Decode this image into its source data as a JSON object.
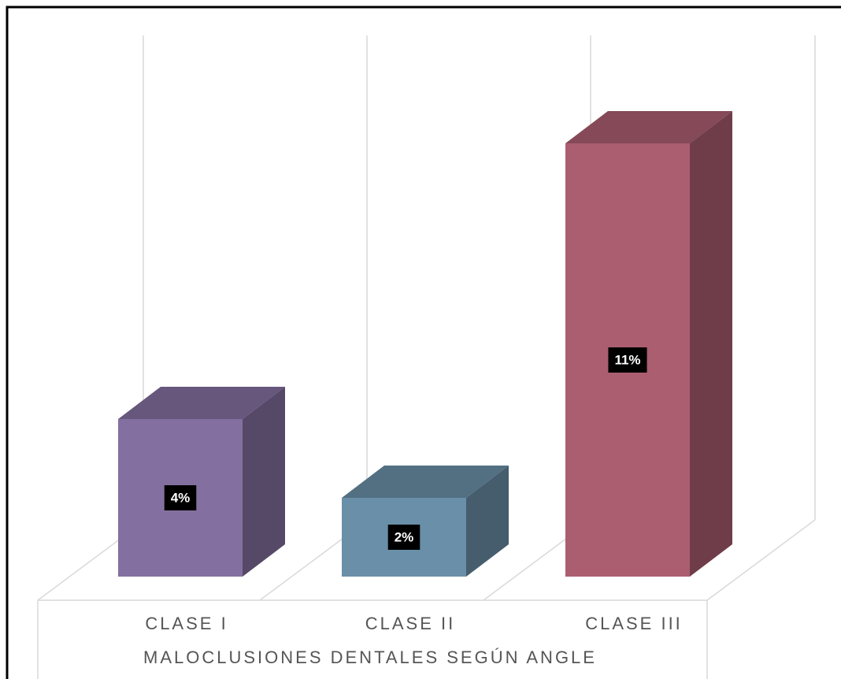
{
  "chart_data": {
    "type": "bar3d",
    "x_label": "MALOCLUSIONES DENTALES SEGÚN ANGLE",
    "categories": [
      "CLASE I",
      "CLASE II",
      "CLASE III"
    ],
    "values": [
      4,
      2,
      11
    ],
    "value_labels": [
      "4%",
      "2%",
      "11%"
    ],
    "colors": [
      "#8470a0",
      "#6a8fa8",
      "#ab5e70"
    ],
    "ylim": [
      0,
      12.5
    ],
    "grid": true
  }
}
